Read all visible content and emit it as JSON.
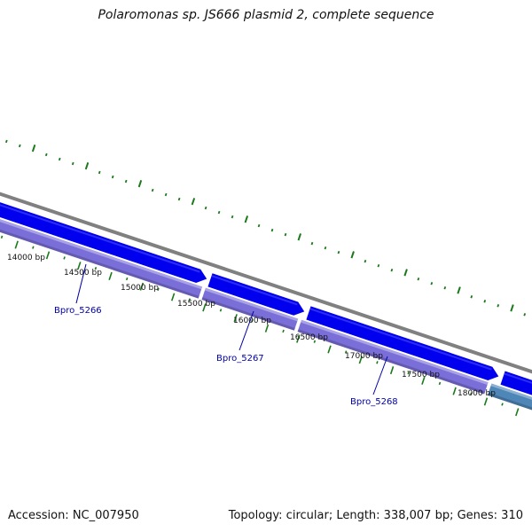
{
  "title": "Polaromonas sp. JS666 plasmid 2, complete sequence",
  "footer": {
    "accession": "Accession: NC_007950",
    "summary": "Topology: circular; Length: 338,007 bp; Genes: 310"
  },
  "colors": {
    "background": "#ffffff",
    "backbone": "#808080",
    "cds_forward": "#0000ee",
    "gene_band": "#7a6fd8",
    "gene_band_alt": "#4f86b8",
    "gc_skew_ticks": "#1a7a1a",
    "gene_label": "#0000a8"
  },
  "scale_labels": [
    "14000 bp",
    "14500 bp",
    "15000 bp",
    "15500 bp",
    "16000 bp",
    "16500 bp",
    "17000 bp",
    "17500 bp",
    "18000 bp"
  ],
  "genes": [
    {
      "label": "Bpro_5266"
    },
    {
      "label": "Bpro_5267"
    },
    {
      "label": "Bpro_5268"
    }
  ]
}
